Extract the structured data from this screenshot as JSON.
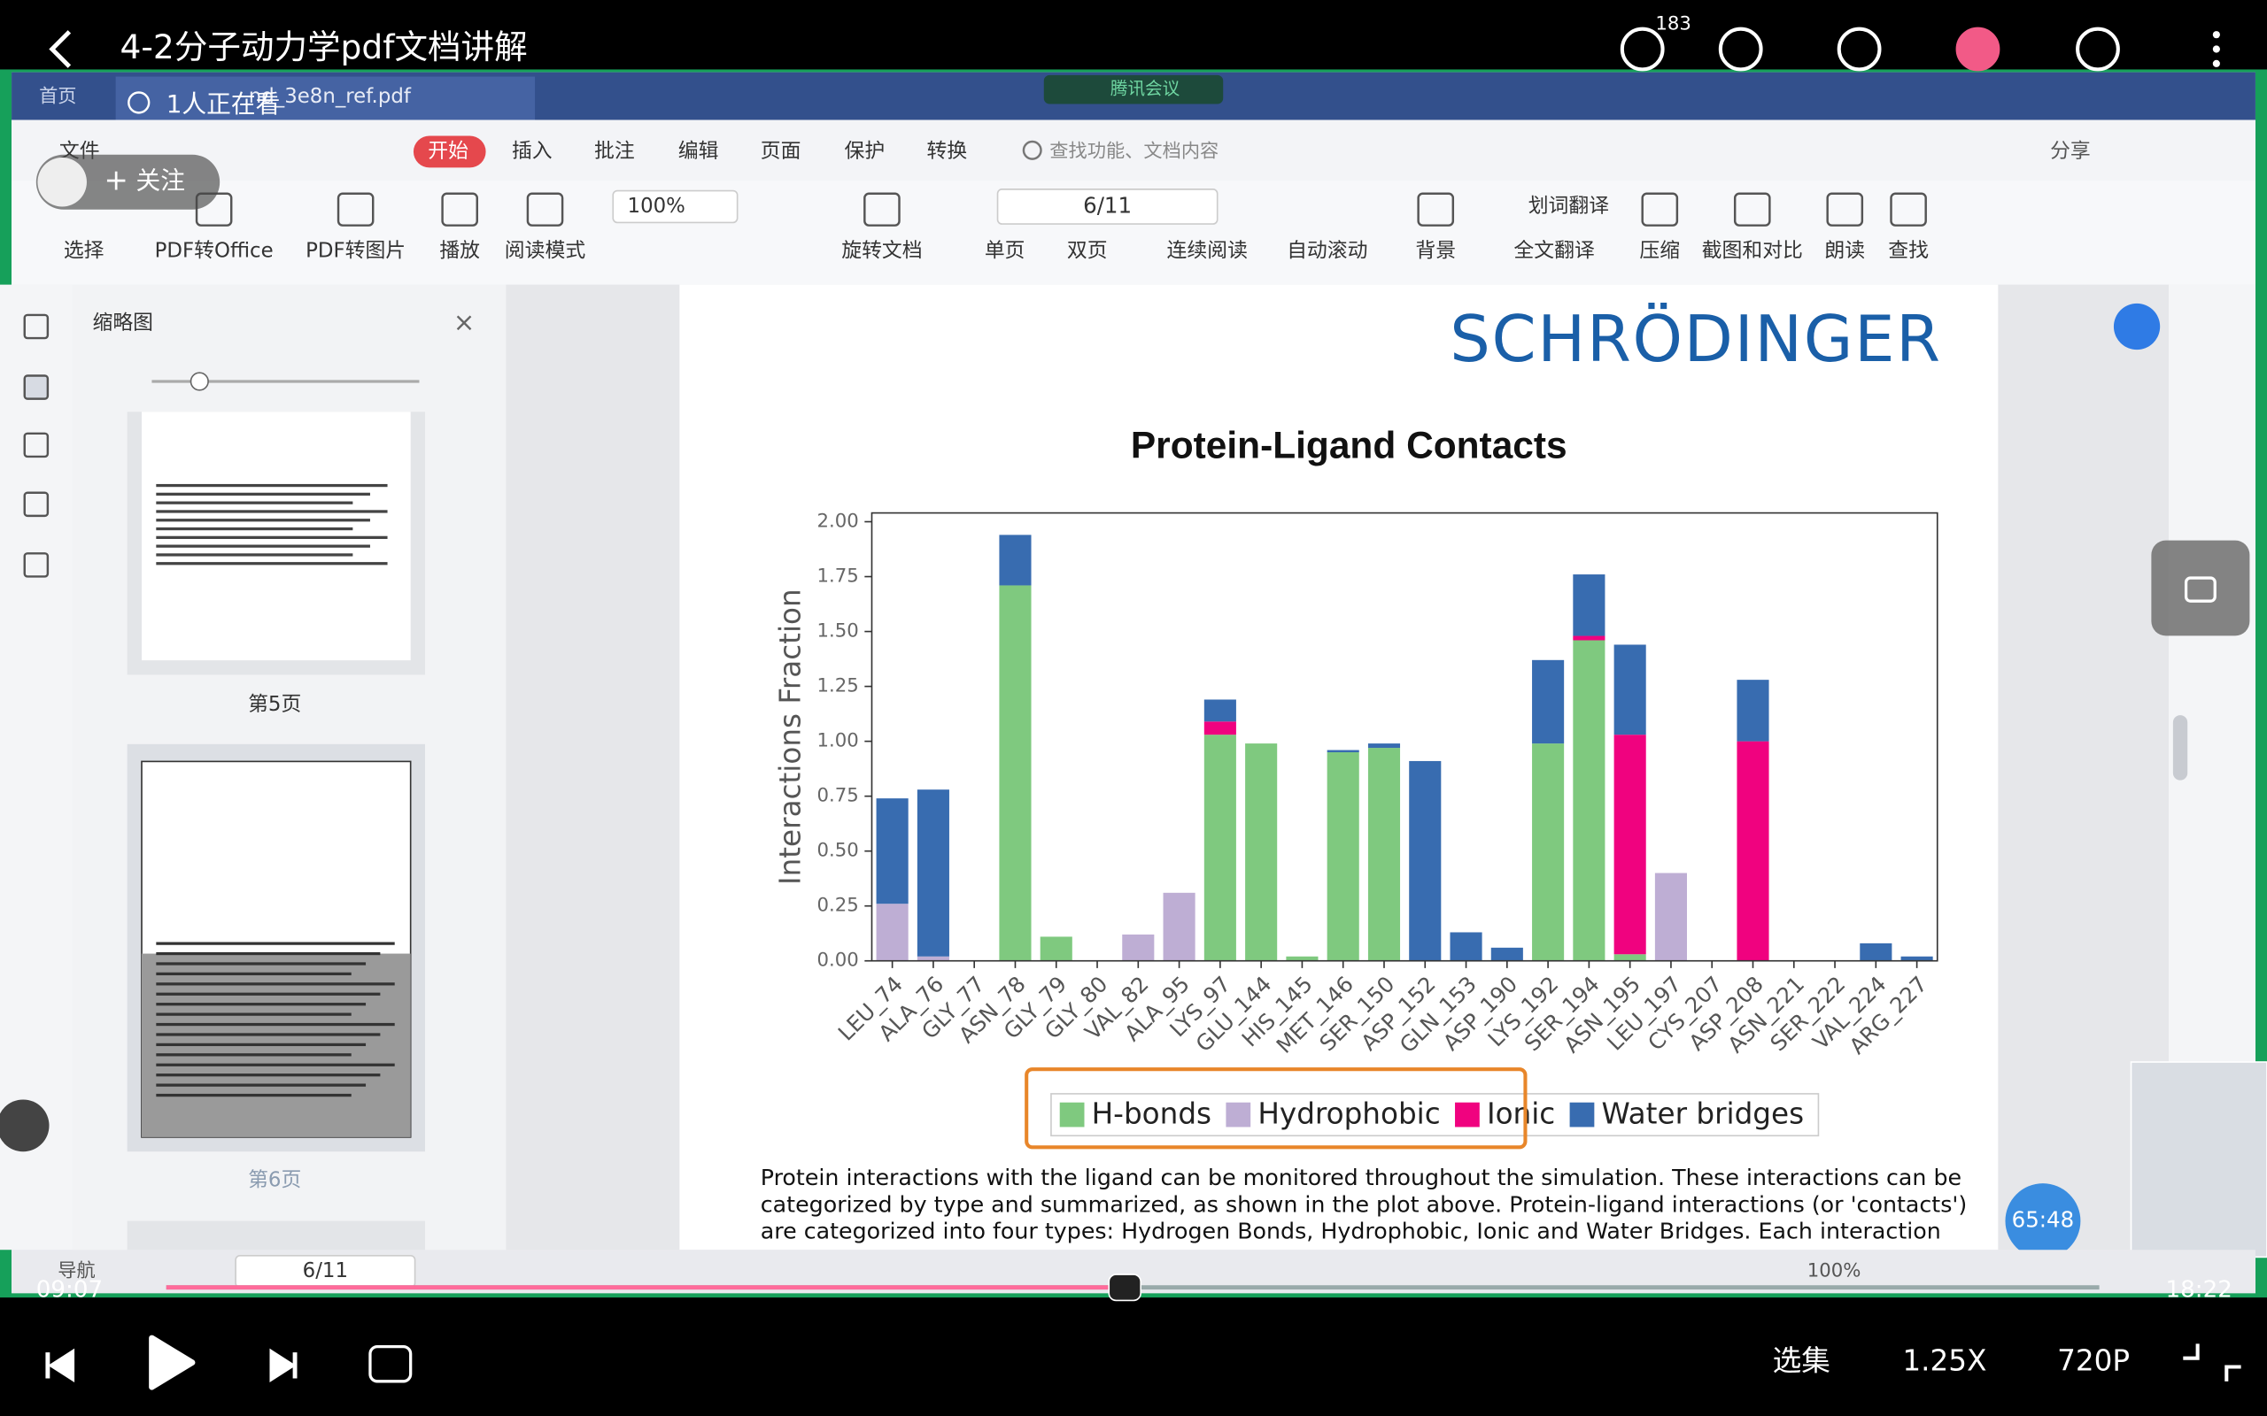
{
  "video": {
    "title": "4-2分子动力学pdf文档讲解",
    "likes": 183,
    "viewers": "1人正在看",
    "follow": "关注",
    "time_current": "09:07",
    "time_total": "18:22",
    "timer": "65:48",
    "episodes": "选集",
    "speed": "1.25X",
    "quality": "720P"
  },
  "pdf_app": {
    "tabs": [
      "首页",
      "nd_3e8n_ref.pdf"
    ],
    "meeting": "腾讯会议",
    "menu": [
      "文件",
      "开始",
      "插入",
      "批注",
      "编辑",
      "页面",
      "保护",
      "转换"
    ],
    "search": "查找功能、文档内容",
    "share": "分享",
    "toolbar": [
      "选择",
      "PDF转Office",
      "PDF转图片",
      "播放",
      "阅读模式",
      "旋转文档",
      "单页",
      "双页",
      "连续阅读",
      "自动滚动",
      "背景",
      "划词翻译",
      "全文翻译",
      "压缩",
      "截图和对比",
      "朗读",
      "查找"
    ],
    "zoom": "100%",
    "page": "6/11",
    "sidebar": {
      "title": "缩略图",
      "pages": [
        "第5页",
        "第6页"
      ]
    },
    "status": {
      "nav": "导航",
      "page": "6/11",
      "zoom": "100%"
    }
  },
  "document": {
    "logo": "SCHRÖDINGER",
    "paragraph": [
      "Protein interactions with the ligand can be monitored throughout the simulation. These interactions can be",
      "categorized by type and summarized, as shown in the plot above. Protein-ligand interactions (or 'contacts')",
      "are categorized into four types: Hydrogen Bonds, Hydrophobic, Ionic and Water Bridges. Each interaction"
    ]
  },
  "chart_data": {
    "type": "stacked-bar",
    "title": "Protein-Ligand Contacts",
    "ylabel": "Interactions Fraction",
    "categories": [
      "LEU_74",
      "ALA_76",
      "GLY_77",
      "ASN_78",
      "GLY_79",
      "GLY_80",
      "VAL_82",
      "ALA_95",
      "LYS_97",
      "GLU_144",
      "HIS_145",
      "MET_146",
      "SER_150",
      "ASP_152",
      "GLN_153",
      "ASP_190",
      "LYS_192",
      "SER_194",
      "ASN_195",
      "LEU_197",
      "CYS_207",
      "ASP_208",
      "ASN_221",
      "SER_222",
      "VAL_224",
      "ARG_227"
    ],
    "series": [
      {
        "name": "H-bonds",
        "color": "#7fc97f",
        "values": [
          0,
          0,
          0,
          1.71,
          0.11,
          0,
          0,
          0,
          1.03,
          0.99,
          0.02,
          0.95,
          0.97,
          0,
          0,
          0,
          0.99,
          1.46,
          0.03,
          0,
          0,
          0,
          0,
          0,
          0,
          0
        ]
      },
      {
        "name": "Hydrophobic",
        "color": "#beaed4",
        "values": [
          0.26,
          0.02,
          0,
          0,
          0,
          0,
          0.12,
          0.31,
          0,
          0,
          0,
          0,
          0,
          0,
          0,
          0,
          0,
          0,
          0,
          0.4,
          0,
          0,
          0,
          0,
          0,
          0
        ]
      },
      {
        "name": "Ionic",
        "color": "#f0027f",
        "values": [
          0,
          0,
          0,
          0,
          0,
          0,
          0,
          0,
          0.06,
          0,
          0,
          0,
          0,
          0,
          0,
          0,
          0,
          0.02,
          1.0,
          0,
          0,
          1.0,
          0,
          0,
          0,
          0
        ]
      },
      {
        "name": "Water bridges",
        "color": "#386cb0",
        "values": [
          0.48,
          0.76,
          0,
          0.23,
          0,
          0,
          0,
          0,
          0.1,
          0,
          0,
          0.01,
          0.02,
          0.91,
          0.13,
          0.06,
          0.38,
          0.28,
          0.41,
          0,
          0,
          0.28,
          0,
          0,
          0.08,
          0.02
        ]
      }
    ],
    "ylim": [
      0,
      2.04
    ],
    "yticks": [
      {
        "value": 0,
        "label": "0.00"
      },
      {
        "value": 0.25,
        "label": "0.25"
      },
      {
        "value": 0.5,
        "label": "0.50"
      },
      {
        "value": 0.75,
        "label": "0.75"
      },
      {
        "value": 1,
        "label": "1.00"
      },
      {
        "value": 1.25,
        "label": "1.25"
      },
      {
        "value": 1.5,
        "label": "1.50"
      },
      {
        "value": 1.75,
        "label": "1.75"
      },
      {
        "value": 2,
        "label": "2.00"
      }
    ],
    "grid": false,
    "legend": "bottom"
  }
}
